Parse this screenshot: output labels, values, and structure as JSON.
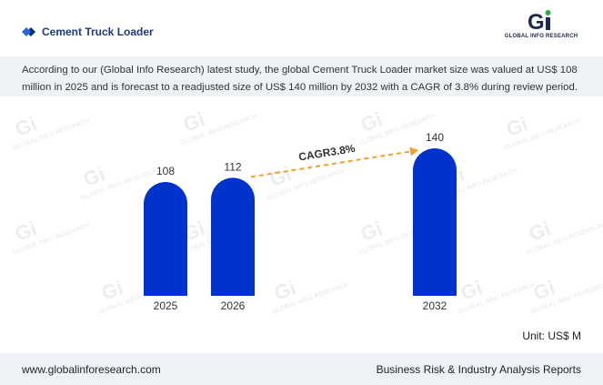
{
  "header": {
    "title": "Cement Truck Loader",
    "logo_text": "GLOBAL INFO RESEARCH",
    "logo_mark": "Gi"
  },
  "description": "According to our (Global Info Research) latest study, the global Cement Truck Loader market size was valued at US$ 108 million in 2025 and is forecast to a readjusted size of US$ 140 million by 2032 with a CAGR of 3.8% during review period.",
  "chart_data": {
    "type": "bar",
    "categories": [
      "2025",
      "2026",
      "2032"
    ],
    "values": [
      108,
      112,
      140
    ],
    "ylim": [
      0,
      140
    ],
    "annotation": {
      "label": "CAGR3.8%",
      "from": "2026",
      "to": "2032"
    },
    "unit": "Unit: US$ M",
    "colors": {
      "bar": "#0033cc",
      "arrow": "#f0a030",
      "label": "#333333"
    }
  },
  "footer": {
    "website": "www.globalinforesearch.com",
    "tagline": "Business Risk & Industry Analysis Reports"
  },
  "colors": {
    "band": "#eef2f7",
    "title": "#1d3a7a",
    "brand_green": "#2eaa4a",
    "brand_blue": "#1b2a4a"
  }
}
